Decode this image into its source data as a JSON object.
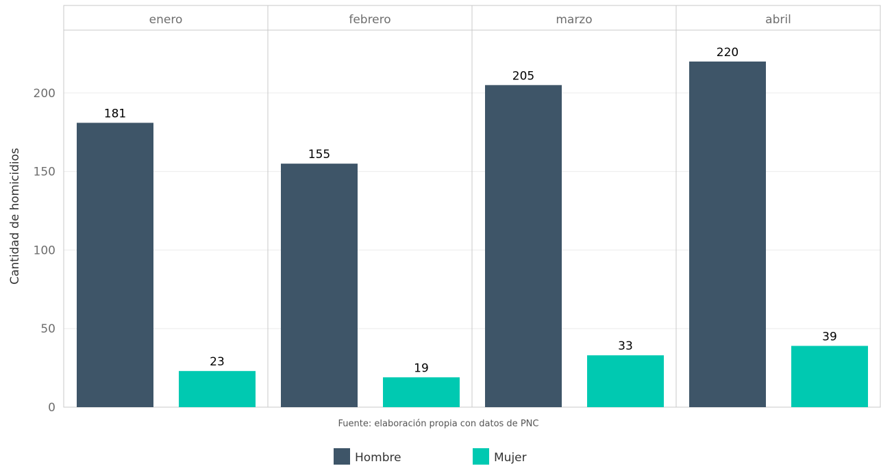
{
  "chart_data": {
    "type": "bar",
    "facets": [
      "enero",
      "febrero",
      "marzo",
      "abril"
    ],
    "series": [
      {
        "name": "Hombre",
        "color": "#3e5568",
        "values": [
          181,
          155,
          205,
          220
        ]
      },
      {
        "name": "Mujer",
        "color": "#00c9b1",
        "values": [
          23,
          19,
          33,
          39
        ]
      }
    ],
    "ylabel": "Cantidad de homicidios",
    "yticks": [
      0,
      50,
      100,
      150,
      200
    ],
    "ylim": [
      0,
      240
    ],
    "grid": true,
    "legend_position": "bottom",
    "caption": "Fuente: elaboración propia con datos de PNC"
  },
  "colors": {
    "grid": "#ebebeb",
    "panel_border": "#c8c8c8"
  }
}
